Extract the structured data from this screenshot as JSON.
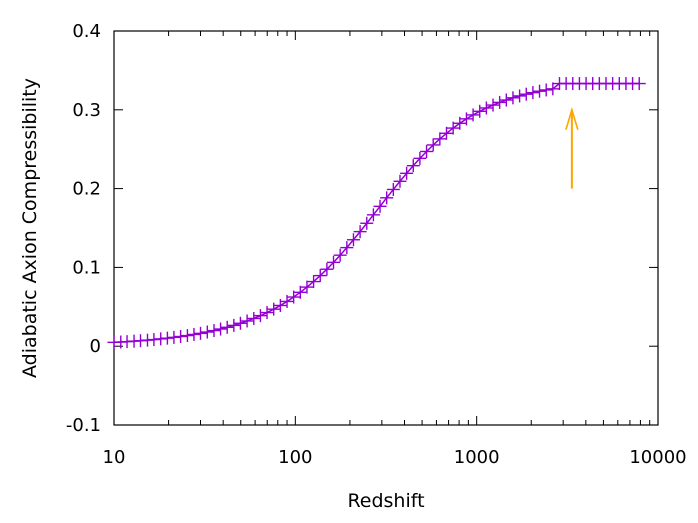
{
  "chart_data": {
    "type": "scatter",
    "title": "",
    "xlabel": "Redshift",
    "ylabel": "Adiabatic Axion Compressibility",
    "x_scale": "log",
    "xlim": [
      10,
      10000
    ],
    "ylim": [
      -0.1,
      0.4
    ],
    "x_ticks": [
      "10",
      "100",
      "1000",
      "10000"
    ],
    "y_ticks": [
      "-0.1",
      "0",
      "0.1",
      "0.2",
      "0.3",
      "0.4"
    ],
    "grid": false,
    "legend": "none",
    "series": [
      {
        "marker": "plus",
        "line": true,
        "color": "#9400d3",
        "x": [
          10.0,
          10.9,
          11.8,
          12.9,
          14.0,
          15.3,
          16.6,
          18.1,
          19.7,
          21.4,
          23.3,
          25.4,
          27.6,
          30.0,
          32.7,
          35.6,
          38.7,
          42.1,
          45.8,
          49.8,
          54.2,
          59.0,
          64.2,
          69.8,
          76.0,
          82.7,
          90.0,
          97.9,
          106.5,
          115.9,
          126.1,
          137.2,
          149.3,
          162.4,
          176.7,
          192.3,
          209.2,
          227.6,
          247.7,
          269.5,
          293.2,
          319.0,
          347.1,
          377.7,
          410.9,
          447.1,
          486.4,
          529.3,
          575.9,
          626.6,
          681.8,
          741.8,
          807.1,
          878.2,
          955.5,
          1039.7,
          1131.2,
          1230.8,
          1339.2,
          1457.1,
          1585.4,
          1725.0,
          1876.9,
          2042.2,
          2222.0,
          2417.7,
          2630.6,
          2862.2,
          3114.3,
          3388.5,
          3686.9,
          4011.6,
          4364.8,
          4749.2,
          5167.4,
          5622.4,
          6117.6,
          6656.3,
          7242.5,
          7880.3
        ],
        "y": [
          0.0049,
          0.0053,
          0.0058,
          0.0064,
          0.007,
          0.0077,
          0.0084,
          0.0093,
          0.0102,
          0.0112,
          0.0123,
          0.0135,
          0.0149,
          0.0163,
          0.018,
          0.0198,
          0.0218,
          0.024,
          0.0264,
          0.0291,
          0.032,
          0.0352,
          0.0388,
          0.0427,
          0.047,
          0.0517,
          0.0568,
          0.0624,
          0.0684,
          0.075,
          0.082,
          0.0896,
          0.0977,
          0.1064,
          0.1155,
          0.1251,
          0.1351,
          0.1454,
          0.156,
          0.1667,
          0.1775,
          0.1883,
          0.1989,
          0.2093,
          0.2194,
          0.2291,
          0.2384,
          0.2471,
          0.2554,
          0.2631,
          0.2702,
          0.2768,
          0.2829,
          0.2885,
          0.2935,
          0.2981,
          0.3023,
          0.306,
          0.3094,
          0.3124,
          0.3152,
          0.3176,
          0.3198,
          0.3218,
          0.3236,
          0.3252,
          0.3266,
          0.3333,
          0.3333,
          0.3333,
          0.3333,
          0.3333,
          0.3333,
          0.3333,
          0.3333,
          0.3333,
          0.3333,
          0.3333,
          0.3333,
          0.3333
        ]
      }
    ],
    "annotations": [
      {
        "type": "arrow",
        "color": "#ffa500",
        "x": 3350,
        "y_from": 0.2,
        "y_to": 0.3
      }
    ]
  }
}
